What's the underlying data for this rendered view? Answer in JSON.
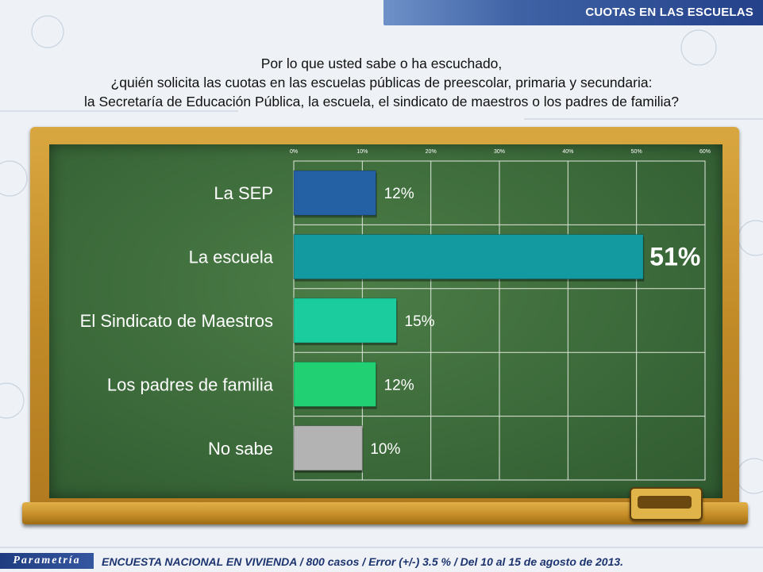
{
  "header": {
    "section_title": "CUOTAS EN LAS ESCUELAS"
  },
  "question": {
    "lines": [
      "Por lo que usted sabe o ha escuchado,",
      "¿quién solicita las cuotas en las escuelas públicas de preescolar, primaria y secundaria:",
      "la Secretaría de Educación Pública, la escuela, el sindicato de maestros o los padres de familia?"
    ]
  },
  "chart_data": {
    "type": "bar",
    "orientation": "horizontal",
    "categories": [
      "La SEP",
      "La escuela",
      "El Sindicato de Maestros",
      "Los padres de familia",
      "No sabe"
    ],
    "values": [
      12,
      51,
      15,
      12,
      10
    ],
    "value_labels": [
      "12%",
      "51%",
      "15%",
      "12%",
      "10%"
    ],
    "colors": [
      "#2461a4",
      "#139aa1",
      "#1bcc9f",
      "#22d074",
      "#b3b3b3"
    ],
    "highlight_index": 1,
    "xlim": [
      0,
      60
    ],
    "ticks": [
      0,
      10,
      20,
      30,
      40,
      50,
      60
    ],
    "tick_labels": [
      "0%",
      "10%",
      "20%",
      "30%",
      "40%",
      "50%",
      "60%"
    ],
    "grid": true,
    "title": "",
    "xlabel": "",
    "ylabel": ""
  },
  "footer": {
    "logo": "Parametría",
    "text": "ENCUESTA NACIONAL EN VIVIENDA / 800 casos / Error (+/-) 3.5 % / Del 10 al 15 de agosto de 2013."
  }
}
